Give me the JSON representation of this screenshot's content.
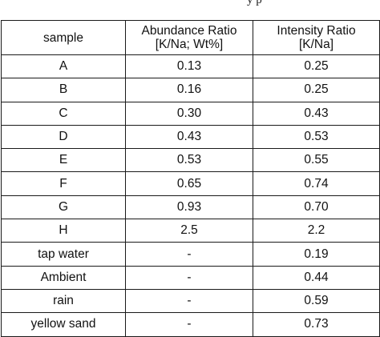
{
  "header_fragment": "y                    p",
  "table": {
    "columns": [
      {
        "line1": "sample",
        "line2": ""
      },
      {
        "line1": "Abundance Ratio",
        "line2": "[K/Na; Wt%]"
      },
      {
        "line1": "Intensity Ratio",
        "line2": "[K/Na]"
      }
    ],
    "rows": [
      {
        "sample": "A",
        "abundance": "0.13",
        "intensity": "0.25"
      },
      {
        "sample": "B",
        "abundance": "0.16",
        "intensity": "0.25"
      },
      {
        "sample": "C",
        "abundance": "0.30",
        "intensity": "0.43"
      },
      {
        "sample": "D",
        "abundance": "0.43",
        "intensity": "0.53"
      },
      {
        "sample": "E",
        "abundance": "0.53",
        "intensity": "0.55"
      },
      {
        "sample": "F",
        "abundance": "0.65",
        "intensity": "0.74"
      },
      {
        "sample": "G",
        "abundance": "0.93",
        "intensity": "0.70"
      },
      {
        "sample": "H",
        "abundance": "2.5",
        "intensity": "2.2"
      },
      {
        "sample": "tap water",
        "abundance": "-",
        "intensity": "0.19"
      },
      {
        "sample": "Ambient",
        "abundance": "-",
        "intensity": "0.44"
      },
      {
        "sample": "rain",
        "abundance": "-",
        "intensity": "0.59"
      },
      {
        "sample": "yellow sand",
        "abundance": "-",
        "intensity": "0.73"
      }
    ]
  }
}
